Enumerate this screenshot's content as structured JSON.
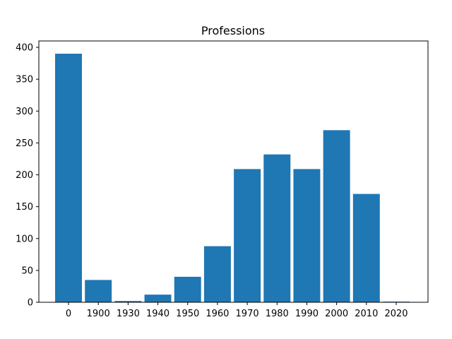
{
  "chart_data": {
    "type": "bar",
    "title": "Professions",
    "xlabel": "",
    "ylabel": "",
    "categories": [
      "0",
      "1900",
      "1930",
      "1940",
      "1950",
      "1960",
      "1970",
      "1980",
      "1990",
      "2000",
      "2010",
      "2020"
    ],
    "values": [
      390,
      35,
      2,
      12,
      40,
      88,
      209,
      232,
      209,
      270,
      170,
      1
    ],
    "ylim": [
      0,
      410
    ],
    "yticks": [
      0,
      50,
      100,
      150,
      200,
      250,
      300,
      350,
      400
    ],
    "bar_color": "#1f77b4",
    "grid": false,
    "legend": "none"
  }
}
